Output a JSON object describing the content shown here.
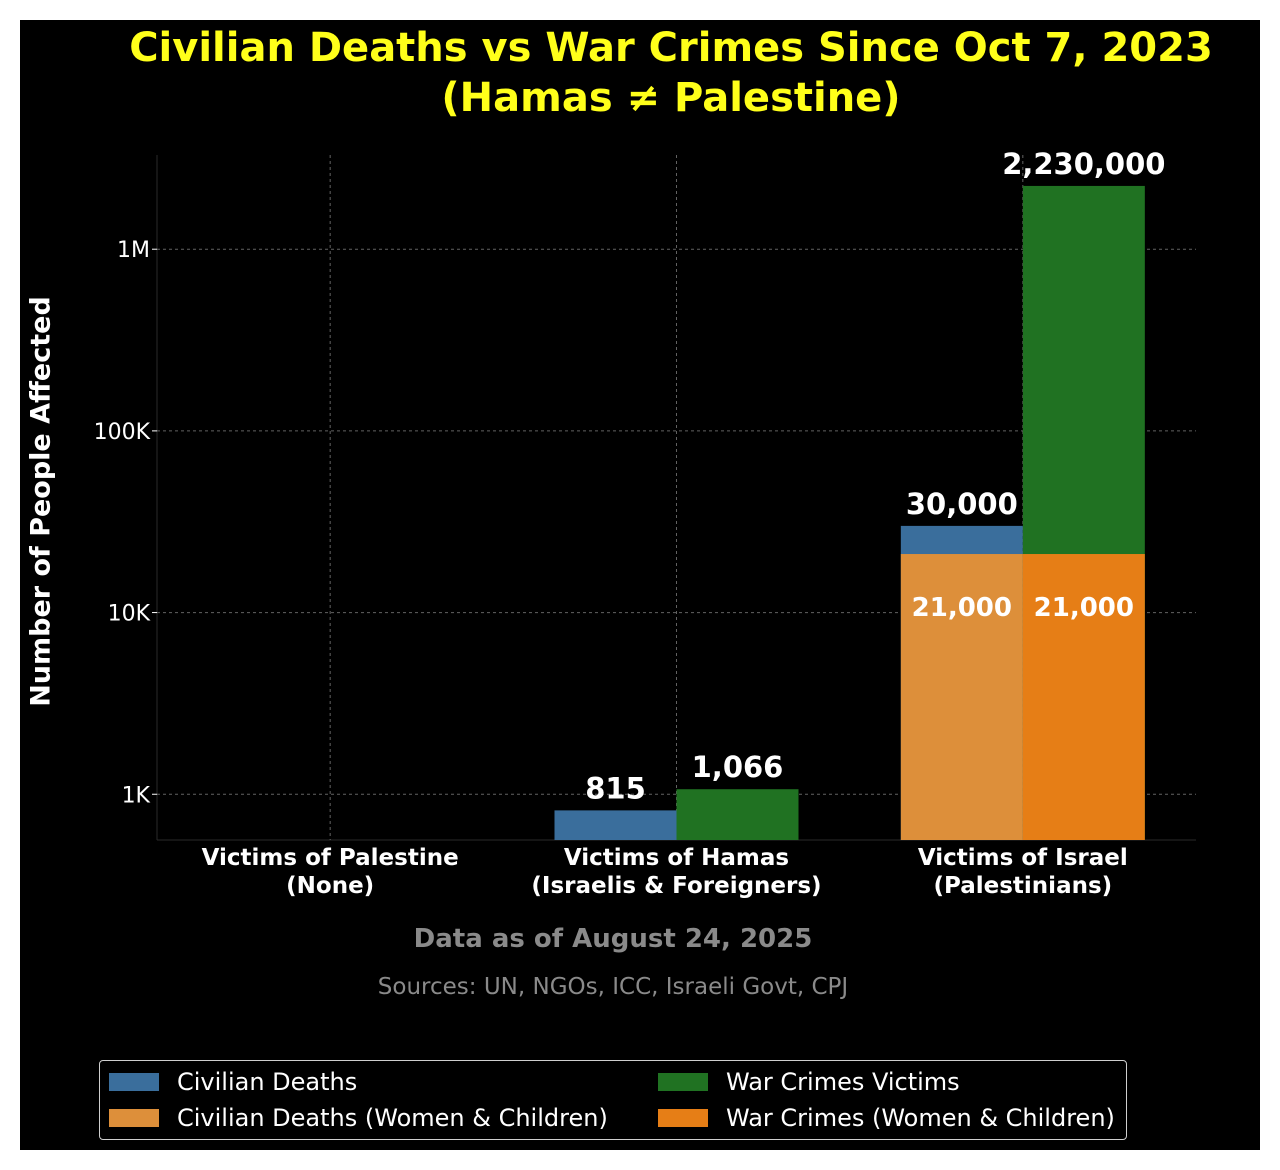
{
  "colors": {
    "background": "#000000",
    "title": "#ffff1a",
    "civilian_deaths": "#3a6e9c",
    "civilian_deaths_wc": "#dd8f3a",
    "war_crimes": "#207222",
    "war_crimes_wc": "#e67e16",
    "grid": "#8c8c8c",
    "note": "#8a8a8a"
  },
  "title_line1": "Civilian Deaths vs War Crimes Since Oct 7, 2023",
  "title_line2": "(Hamas ≠ Palestine)",
  "notes": {
    "date": "Data as of August 24, 2025",
    "sources": "Sources: UN, NGOs, ICC, Israeli Govt, CPJ"
  },
  "chart_data": {
    "type": "bar",
    "stacked_groups": true,
    "title": "Civilian Deaths vs War Crimes Since Oct 7, 2023 (Hamas ≠ Palestine)",
    "xlabel": "",
    "ylabel": "Number of People Affected",
    "y_scale": "log",
    "ylim": [
      560,
      3300000
    ],
    "grid": true,
    "legend_position": "bottom",
    "categories": [
      [
        "Victims of Palestine",
        "(None)"
      ],
      [
        "Victims of Hamas",
        "(Israelis & Foreigners)"
      ],
      [
        "Victims of Israel",
        "(Palestinians)"
      ]
    ],
    "y_ticks": [
      {
        "value": 1000,
        "label": "1K"
      },
      {
        "value": 10000,
        "label": "10K"
      },
      {
        "value": 100000,
        "label": "100K"
      },
      {
        "value": 1000000,
        "label": "1M"
      }
    ],
    "series": [
      {
        "name": "Civilian Deaths",
        "values": [
          0,
          815,
          30000
        ],
        "color": "#3a6e9c"
      },
      {
        "name": "Civilian Deaths (Women & Children)",
        "values": [
          0,
          0,
          21000
        ],
        "color": "#dd8f3a"
      },
      {
        "name": "War Crimes Victims",
        "values": [
          0,
          1066,
          2230000
        ],
        "color": "#207222"
      },
      {
        "name": "War Crimes (Women & Children)",
        "values": [
          0,
          0,
          21000
        ],
        "color": "#e67e16"
      }
    ],
    "data_labels": [
      {
        "series": 0,
        "category": 1,
        "text": "815",
        "kind": "top"
      },
      {
        "series": 2,
        "category": 1,
        "text": "1,066",
        "kind": "top"
      },
      {
        "series": 0,
        "category": 2,
        "text": "30,000",
        "kind": "top"
      },
      {
        "series": 2,
        "category": 2,
        "text": "2,230,000",
        "kind": "top"
      },
      {
        "series": 1,
        "category": 2,
        "text": "21,000",
        "kind": "inside"
      },
      {
        "series": 3,
        "category": 2,
        "text": "21,000",
        "kind": "inside"
      }
    ]
  }
}
